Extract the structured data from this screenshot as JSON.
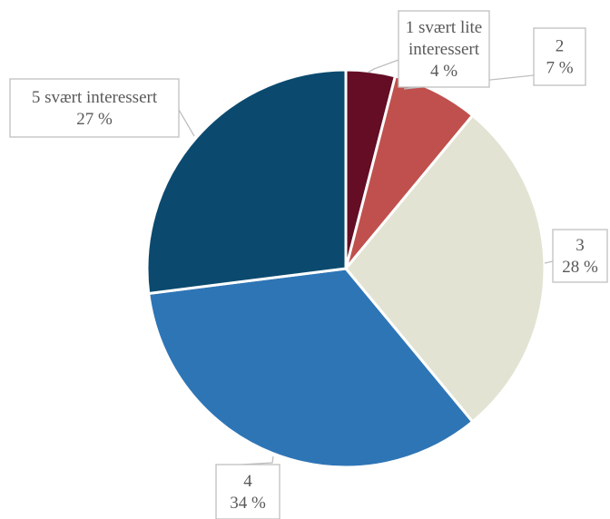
{
  "chart_data": {
    "type": "pie",
    "categories": [
      "1 svært lite interessert",
      "2",
      "3",
      "4",
      "5 svært interessert"
    ],
    "values": [
      4,
      7,
      28,
      34,
      27
    ],
    "colors": [
      "#640d24",
      "#c0504d",
      "#e3e3d4",
      "#2e75b6",
      "#0b4a6e"
    ],
    "data_labels": [
      {
        "lines": [
          "1 svært lite",
          "interessert",
          "4 %"
        ]
      },
      {
        "lines": [
          "2",
          "7 %"
        ]
      },
      {
        "lines": [
          "3",
          "28 %"
        ]
      },
      {
        "lines": [
          "4",
          "34 %"
        ]
      },
      {
        "lines": [
          "5 svært interessert",
          "27 %"
        ]
      }
    ],
    "legend": "none",
    "title": ""
  }
}
